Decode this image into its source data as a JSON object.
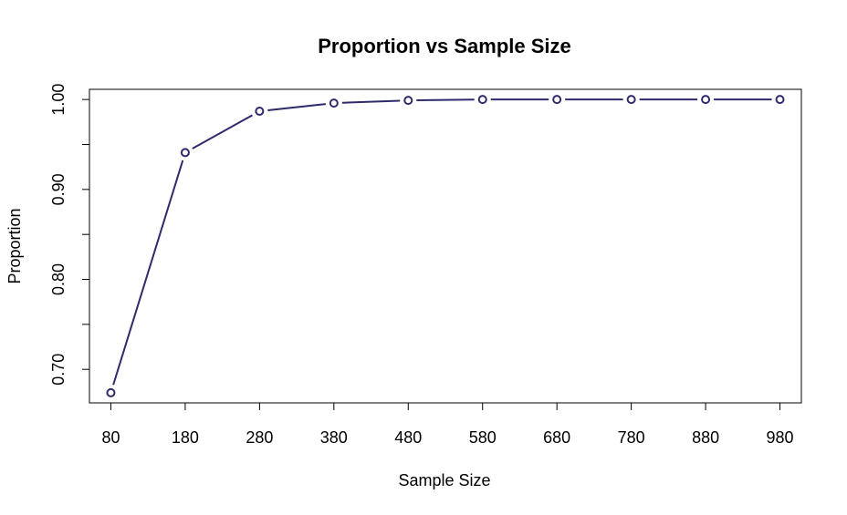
{
  "chart_data": {
    "type": "line",
    "title": "Proportion vs Sample Size",
    "xlabel": "Sample Size",
    "ylabel": "Proportion",
    "x": [
      80,
      180,
      280,
      380,
      480,
      580,
      680,
      780,
      880,
      980
    ],
    "series": [
      {
        "values": [
          0.674,
          0.941,
          0.987,
          0.996,
          0.999,
          1.0,
          1.0,
          1.0,
          1.0,
          1.0
        ]
      }
    ],
    "xticks": [
      "80",
      "180",
      "280",
      "380",
      "480",
      "580",
      "680",
      "780",
      "880",
      "980"
    ],
    "yticks": [
      0.7,
      0.8,
      0.9,
      1.0
    ],
    "ytick_labels": [
      "0.70",
      "0.80",
      "0.90",
      "1.00"
    ],
    "xlim": [
      51.2,
      1008.8
    ],
    "ylim": [
      0.6627,
      1.0113
    ],
    "grid": false,
    "line_color": "#2e2a6b",
    "marker": "open-circle"
  }
}
